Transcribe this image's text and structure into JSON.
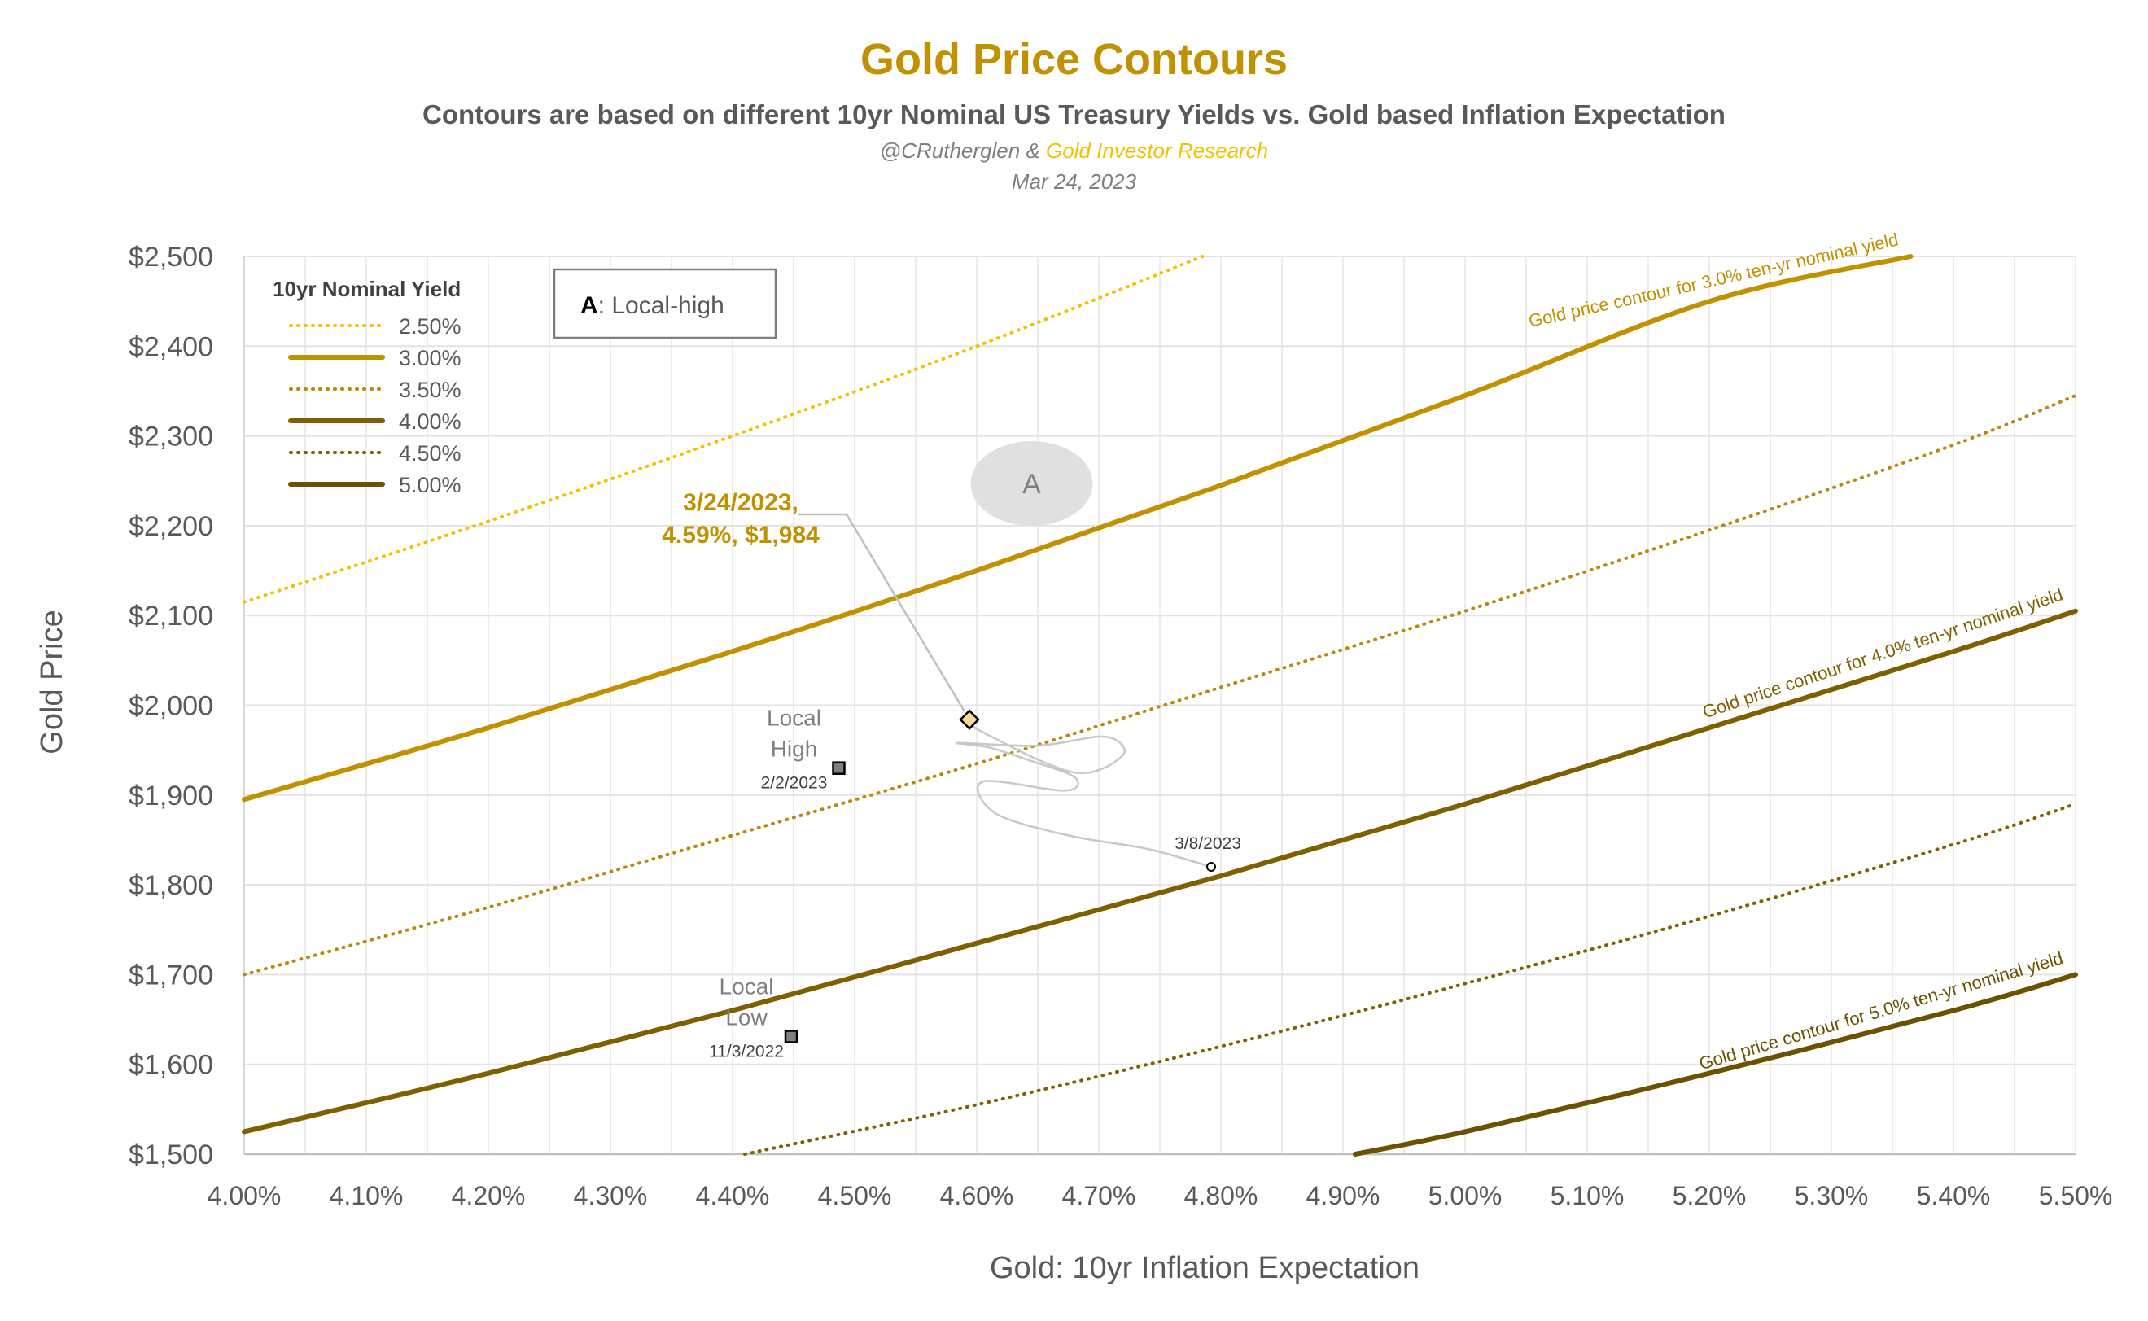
{
  "header": {
    "title": "Gold Price Contours",
    "subtitle": "Contours are based on different 10yr Nominal US Treasury Yields vs. Gold based Inflation Expectation",
    "credit_handle": "@CRutherglen",
    "credit_amp": " & ",
    "credit_brand": "Gold Investor Research",
    "date": "Mar 24, 2023"
  },
  "chart_data": {
    "type": "line",
    "xlabel": "Gold: 10yr Inflation Expectation",
    "ylabel": "Gold Price",
    "xlim": [
      4.0,
      5.5
    ],
    "ylim": [
      1500,
      2500
    ],
    "grid": true,
    "x_ticks": [
      4.0,
      4.1,
      4.2,
      4.3,
      4.4,
      4.5,
      4.6,
      4.7,
      4.8,
      4.9,
      5.0,
      5.1,
      5.2,
      5.3,
      5.4,
      5.5
    ],
    "x_tick_labels": [
      "4.00%",
      "4.10%",
      "4.20%",
      "4.30%",
      "4.40%",
      "4.50%",
      "4.60%",
      "4.70%",
      "4.80%",
      "4.90%",
      "5.00%",
      "5.10%",
      "5.20%",
      "5.30%",
      "5.40%",
      "5.50%"
    ],
    "y_ticks": [
      1500,
      1600,
      1700,
      1800,
      1900,
      2000,
      2100,
      2200,
      2300,
      2400,
      2500
    ],
    "y_tick_labels": [
      "$1,500",
      "$1,600",
      "$1,700",
      "$1,800",
      "$1,900",
      "$2,000",
      "$2,100",
      "$2,200",
      "$2,300",
      "$2,400",
      "$2,500"
    ],
    "legend": {
      "title": "10yr Nominal Yield",
      "placement": "top-left"
    },
    "series": [
      {
        "name": "2.50%",
        "color": "#f2c200",
        "style": "dotted",
        "x": [
          4.0,
          4.2,
          4.4,
          4.6,
          4.785
        ],
        "y": [
          2115,
          2205,
          2300,
          2400,
          2500
        ]
      },
      {
        "name": "3.00%",
        "color": "#c09100",
        "style": "solid",
        "x": [
          4.0,
          4.2,
          4.4,
          4.6,
          4.8,
          5.0,
          5.2,
          5.365
        ],
        "y": [
          1895,
          1975,
          2060,
          2150,
          2245,
          2345,
          2450,
          2500
        ]
      },
      {
        "name": "3.50%",
        "color": "#b8890b",
        "style": "dotted",
        "x": [
          4.0,
          4.2,
          4.4,
          4.6,
          4.8,
          5.0,
          5.2,
          5.4,
          5.5
        ],
        "y": [
          1700,
          1775,
          1855,
          1935,
          2020,
          2105,
          2195,
          2290,
          2345
        ]
      },
      {
        "name": "4.00%",
        "color": "#7f6000",
        "style": "solid",
        "x": [
          4.0,
          4.2,
          4.4,
          4.6,
          4.8,
          5.0,
          5.2,
          5.4,
          5.5
        ],
        "y": [
          1525,
          1590,
          1660,
          1735,
          1810,
          1890,
          1975,
          2060,
          2105
        ]
      },
      {
        "name": "4.50%",
        "color": "#7f6000",
        "style": "dotted",
        "x": [
          4.41,
          4.6,
          4.8,
          5.0,
          5.2,
          5.4,
          5.5
        ],
        "y": [
          1500,
          1555,
          1620,
          1690,
          1765,
          1845,
          1890
        ]
      },
      {
        "name": "5.00%",
        "color": "#6b5200",
        "style": "solid",
        "x": [
          4.91,
          5.0,
          5.2,
          5.4,
          5.5
        ],
        "y": [
          1500,
          1525,
          1590,
          1660,
          1700
        ]
      }
    ],
    "contour_labels": [
      {
        "text": "Gold price contour for 3.0% ten-yr nominal yield",
        "series": 1,
        "color": "#c09100"
      },
      {
        "text": "Gold price contour for 4.0% ten-yr nominal yield",
        "series": 3,
        "color": "#7f6000"
      },
      {
        "text": "Gold price contour for 5.0% ten-yr nominal yield",
        "series": 5,
        "color": "#6b5200"
      }
    ],
    "path": {
      "color": "#c8c8c8",
      "x": [
        4.792,
        4.74,
        4.675,
        4.615,
        4.605,
        4.672,
        4.68,
        4.64,
        4.61,
        4.585,
        4.65,
        4.705,
        4.72,
        4.68,
        4.605,
        4.594
      ],
      "y": [
        1820,
        1840,
        1855,
        1880,
        1915,
        1905,
        1920,
        1940,
        1953,
        1958,
        1955,
        1965,
        1945,
        1925,
        1970,
        1984
      ]
    },
    "points": [
      {
        "role": "latest",
        "x": 4.594,
        "y": 1984,
        "label1": "3/24/2023,",
        "label2": "4.59%, $1,984"
      },
      {
        "role": "local-high",
        "x": 4.487,
        "y": 1930,
        "label1": "Local",
        "label2": "High",
        "date": "2/2/2023"
      },
      {
        "role": "local-low",
        "x": 4.448,
        "y": 1631,
        "label1": "Local",
        "label2": "Low",
        "date": "11/3/2022"
      },
      {
        "role": "mid",
        "x": 4.792,
        "y": 1820,
        "date": "3/8/2023"
      }
    ],
    "annotation_marker": {
      "letter": "A",
      "x": 4.645,
      "y": 2247
    },
    "annotation_box": {
      "letter": "A",
      "separator": ": ",
      "text": "Local-high"
    }
  }
}
